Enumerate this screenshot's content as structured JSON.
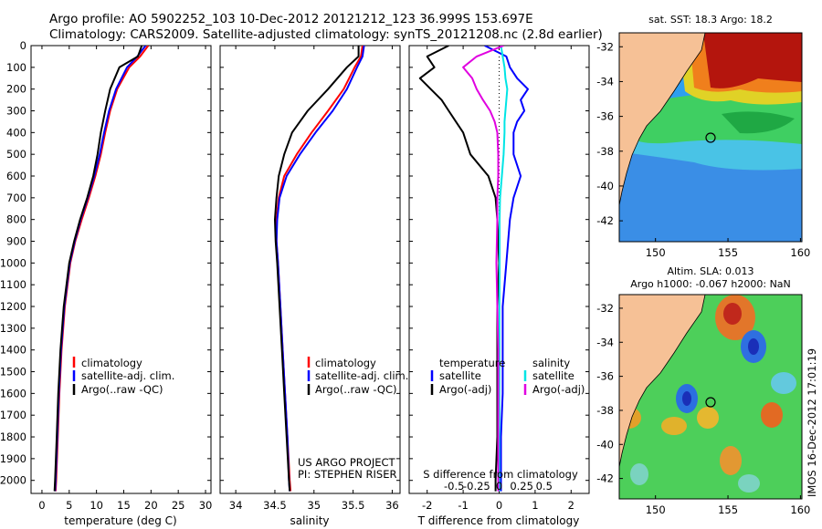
{
  "title": {
    "line1": "Argo profile: AO 5902252_103 10-Dec-2012 20121212_123 36.999S 153.697E",
    "line2": "Climatology: CARS2009. Satellite-adjusted climatology: synTS_20121208.nc (2.8d earlier)"
  },
  "colors": {
    "climatology": "#ff0000",
    "satellite": "#0000ff",
    "argo": "#000000",
    "salinity_satellite": "#00e5e5",
    "salinity_argo": "#e000e0",
    "land": "#f6c196"
  },
  "depth_axis": {
    "ylim": [
      0,
      2060
    ],
    "ticks": [
      0,
      100,
      200,
      300,
      400,
      500,
      600,
      700,
      800,
      900,
      1000,
      1100,
      1200,
      1300,
      1400,
      1500,
      1600,
      1700,
      1800,
      1900,
      2000
    ]
  },
  "chart_data": [
    {
      "type": "line",
      "id": "temperature",
      "xlabel": "temperature (deg C)",
      "xlim": [
        -2,
        31
      ],
      "xticks": [
        0,
        5,
        10,
        15,
        20,
        25,
        30
      ],
      "legend": [
        "climatology",
        "satellite-adj. clim.",
        "Argo(..raw -QC)"
      ],
      "depth": [
        0,
        50,
        100,
        200,
        300,
        400,
        500,
        600,
        700,
        800,
        900,
        1000,
        1200,
        1400,
        1600,
        1800,
        2000,
        2050
      ],
      "series": [
        {
          "name": "climatology",
          "color_key": "climatology",
          "values": [
            19.5,
            18.0,
            16.0,
            13.8,
            12.5,
            11.6,
            10.8,
            9.8,
            8.6,
            7.3,
            6.1,
            5.2,
            4.2,
            3.6,
            3.2,
            2.9,
            2.6,
            2.5
          ]
        },
        {
          "name": "satellite-adj. clim.",
          "color_key": "satellite",
          "values": [
            19.0,
            17.5,
            15.6,
            13.6,
            12.3,
            11.4,
            10.6,
            9.6,
            8.4,
            7.1,
            6.0,
            5.1,
            4.1,
            3.5,
            3.1,
            2.8,
            2.5,
            2.4
          ]
        },
        {
          "name": "Argo(..raw -QC)",
          "color_key": "argo",
          "values": [
            18.3,
            17.6,
            14.2,
            12.5,
            11.6,
            10.8,
            10.2,
            9.4,
            8.3,
            7.0,
            5.9,
            5.0,
            4.0,
            3.4,
            3.0,
            2.7,
            2.4,
            2.3
          ]
        }
      ]
    },
    {
      "type": "line",
      "id": "salinity",
      "xlabel": "salinity",
      "xlim": [
        33.8,
        36.1
      ],
      "xticks": [
        34,
        34.5,
        35,
        35.5,
        36
      ],
      "legend": [
        "climatology",
        "satellite-adj. clim.",
        "Argo(..raw -QC)"
      ],
      "annotation": [
        "US ARGO PROJECT",
        "PI: STEPHEN RISER"
      ],
      "depth": [
        0,
        50,
        100,
        200,
        300,
        400,
        500,
        600,
        700,
        800,
        900,
        1000,
        1200,
        1400,
        1600,
        1800,
        2000,
        2050
      ],
      "series": [
        {
          "name": "climatology",
          "color_key": "climatology",
          "values": [
            35.62,
            35.6,
            35.52,
            35.38,
            35.18,
            34.97,
            34.78,
            34.62,
            34.55,
            34.52,
            34.52,
            34.54,
            34.57,
            34.6,
            34.63,
            34.66,
            34.69,
            34.7
          ]
        },
        {
          "name": "satellite-adj. clim.",
          "color_key": "satellite",
          "values": [
            35.64,
            35.62,
            35.55,
            35.42,
            35.24,
            35.02,
            34.82,
            34.65,
            34.56,
            34.53,
            34.52,
            34.54,
            34.57,
            34.6,
            34.63,
            34.66,
            34.68,
            34.69
          ]
        },
        {
          "name": "Argo(..raw -QC)",
          "color_key": "argo",
          "values": [
            35.57,
            35.57,
            35.42,
            35.18,
            34.92,
            34.72,
            34.62,
            34.55,
            34.52,
            34.5,
            34.51,
            34.53,
            34.56,
            34.59,
            34.62,
            34.65,
            34.68,
            34.69
          ]
        }
      ]
    },
    {
      "type": "line",
      "id": "difference",
      "xlabel": "T difference from climatology",
      "xlabel_top": "S difference from climatology",
      "xlim": [
        -2.5,
        2.5
      ],
      "xticks": [
        -2,
        -1,
        0,
        1,
        2
      ],
      "s_ticks": [
        -0.5,
        -0.25,
        0,
        0.25,
        0.5
      ],
      "s_tick_labels": [
        "-0.5",
        "-0.25",
        "0",
        "0.25",
        "0.5"
      ],
      "legend_headers": [
        "temperature",
        "salinity"
      ],
      "legend": [
        "satellite",
        "Argo(-adj)",
        "satellite",
        "Argo(-adj)"
      ],
      "depth": [
        0,
        50,
        100,
        150,
        200,
        250,
        300,
        350,
        400,
        500,
        600,
        700,
        800,
        1000,
        1200,
        1400,
        1600,
        1800,
        2000,
        2050
      ],
      "series": [
        {
          "name": "T satellite",
          "color_key": "satellite",
          "values": [
            -0.4,
            0.2,
            0.3,
            0.5,
            0.8,
            0.6,
            0.7,
            0.5,
            0.4,
            0.4,
            0.6,
            0.4,
            0.3,
            0.2,
            0.1,
            0.1,
            0.1,
            0.05,
            0.05,
            0.05
          ]
        },
        {
          "name": "T Argo(-adj)",
          "color_key": "argo",
          "values": [
            -1.4,
            -2.0,
            -1.8,
            -2.2,
            -1.9,
            -1.6,
            -1.4,
            -1.2,
            -1.0,
            -0.8,
            -0.3,
            -0.1,
            -0.05,
            0.0,
            -0.05,
            -0.05,
            -0.05,
            -0.05,
            -0.1,
            -0.1
          ]
        },
        {
          "name": "S satellite",
          "color_key": "salinity_satellite",
          "values": [
            0.02,
            0.04,
            0.06,
            0.07,
            0.09,
            0.08,
            0.07,
            0.06,
            0.06,
            0.05,
            0.03,
            0.01,
            0.005,
            0.005,
            0.003,
            0.003,
            0.002,
            0.002,
            0.002,
            0.002
          ]
        },
        {
          "name": "S Argo(-adj)",
          "color_key": "salinity_argo",
          "values": [
            0.05,
            -0.25,
            -0.4,
            -0.3,
            -0.25,
            -0.18,
            -0.1,
            -0.05,
            -0.02,
            -0.01,
            -0.01,
            -0.02,
            -0.02,
            -0.03,
            -0.02,
            -0.01,
            -0.01,
            -0.01,
            -0.01,
            -0.01
          ]
        }
      ]
    }
  ],
  "maps": {
    "lon_ticks": [
      150,
      155,
      160
    ],
    "lat_ticks": [
      -32,
      -34,
      -36,
      -38,
      -40,
      -42
    ],
    "lat_labels": [
      "-32",
      "-34",
      "-36",
      "-38",
      "-40",
      "-42"
    ],
    "float_position": {
      "lon": 153.697,
      "lat": -36.999
    },
    "sst": {
      "title": "sat. SST: 18.3  Argo: 18.2"
    },
    "sla": {
      "title_line1": "Altim. SLA: 0.013",
      "title_line2": "Argo h1000: -0.067 h2000: NaN"
    }
  },
  "footer": {
    "stamp": "IMOS 16-Dec-2012 17:01:19"
  }
}
